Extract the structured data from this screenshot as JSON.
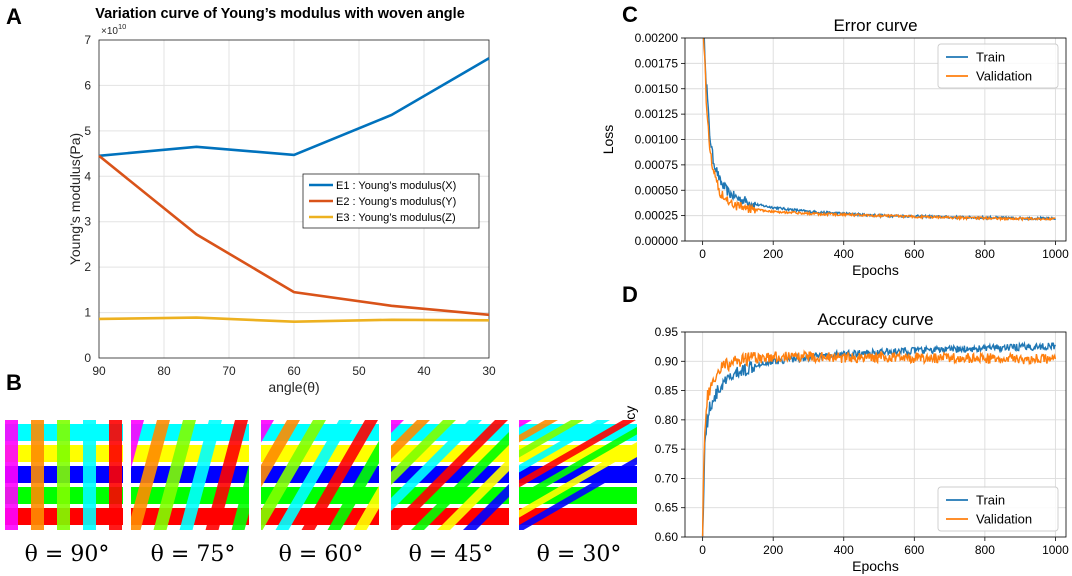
{
  "panel_letters": {
    "a": "A",
    "b": "B",
    "c": "C",
    "d": "D"
  },
  "colors": {
    "e1": "#0072BD",
    "e2": "#D95319",
    "e3": "#EDB120",
    "train": "#1f77b4",
    "validation": "#ff7f0e",
    "strand_palette": [
      "#00FFFF",
      "#FFFF00",
      "#0000FF",
      "#00FF00",
      "#FF0000",
      "#FF00FF",
      "#FF8C00",
      "#7FFF00"
    ]
  },
  "weave_labels": [
    "θ = 90°",
    "θ = 75°",
    "θ = 60°",
    "θ = 45°",
    "θ = 30°"
  ],
  "weave_angles": [
    90,
    75,
    60,
    45,
    30
  ],
  "chart_data": [
    {
      "id": "A",
      "type": "line",
      "title": "Variation curve of Young’s modulus with woven angle",
      "xlabel": "angle(θ)",
      "ylabel": "Young’s modulus(Pa)",
      "exponent_label": "×10",
      "exponent_power": "10",
      "x": [
        90,
        75,
        60,
        45,
        30
      ],
      "xlim": [
        90,
        30
      ],
      "ylim": [
        0,
        7
      ],
      "xticks": [
        "90",
        "80",
        "70",
        "60",
        "50",
        "40",
        "30"
      ],
      "yticks": [
        "0",
        "1",
        "2",
        "3",
        "4",
        "5",
        "6",
        "7"
      ],
      "grid": true,
      "legend_position": "center-right",
      "series": [
        {
          "name": "E1 : Young’s modulus(X)",
          "values": [
            4.45,
            4.65,
            4.47,
            5.35,
            6.6
          ]
        },
        {
          "name": "E2 : Young’s modulus(Y)",
          "values": [
            4.45,
            2.72,
            1.45,
            1.15,
            0.95
          ]
        },
        {
          "name": "E3 : Young’s modulus(Z)",
          "values": [
            0.86,
            0.89,
            0.8,
            0.84,
            0.83
          ]
        }
      ]
    },
    {
      "id": "C",
      "type": "line",
      "title": "Error curve",
      "xlabel": "Epochs",
      "ylabel": "Loss",
      "xlim": [
        -50,
        1030
      ],
      "ylim": [
        0,
        0.002
      ],
      "xticks": [
        "0",
        "200",
        "400",
        "600",
        "800",
        "1000"
      ],
      "yticks": [
        "0.00000",
        "0.00025",
        "0.00050",
        "0.00075",
        "0.00100",
        "0.00125",
        "0.00150",
        "0.00175",
        "0.00200"
      ],
      "grid": true,
      "legend_position": "top-right",
      "series": [
        {
          "name": "Train",
          "x": [
            0,
            5,
            10,
            20,
            30,
            50,
            75,
            100,
            150,
            200,
            300,
            400,
            500,
            600,
            700,
            800,
            900,
            1000
          ],
          "values": [
            0.0021,
            0.002,
            0.0016,
            0.00105,
            0.0008,
            0.00058,
            0.00047,
            0.00042,
            0.00036,
            0.00033,
            0.00029,
            0.00027,
            0.00025,
            0.000245,
            0.000235,
            0.00023,
            0.000225,
            0.00022
          ]
        },
        {
          "name": "Validation",
          "x": [
            0,
            5,
            10,
            20,
            30,
            50,
            75,
            100,
            150,
            200,
            300,
            400,
            500,
            600,
            700,
            800,
            900,
            1000
          ],
          "values": [
            0.0021,
            0.0019,
            0.0014,
            0.0009,
            0.0007,
            0.00048,
            0.00038,
            0.00034,
            0.00031,
            0.00029,
            0.00027,
            0.00026,
            0.00025,
            0.00024,
            0.00023,
            0.000225,
            0.00022,
            0.000215
          ]
        }
      ]
    },
    {
      "id": "D",
      "type": "line",
      "title": "Accuracy curve",
      "xlabel": "Epochs",
      "ylabel": "Accuracy",
      "xlim": [
        -50,
        1030
      ],
      "ylim": [
        0.6,
        0.95
      ],
      "xticks": [
        "0",
        "200",
        "400",
        "600",
        "800",
        "1000"
      ],
      "yticks": [
        "0.60",
        "0.65",
        "0.70",
        "0.75",
        "0.80",
        "0.85",
        "0.90",
        "0.95"
      ],
      "grid": true,
      "legend_position": "bottom-right",
      "series": [
        {
          "name": "Train",
          "x": [
            0,
            5,
            10,
            20,
            30,
            50,
            75,
            100,
            150,
            200,
            300,
            400,
            500,
            600,
            700,
            800,
            900,
            1000
          ],
          "values": [
            0.6,
            0.74,
            0.79,
            0.82,
            0.835,
            0.855,
            0.87,
            0.88,
            0.895,
            0.9,
            0.907,
            0.912,
            0.915,
            0.918,
            0.92,
            0.922,
            0.924,
            0.926
          ]
        },
        {
          "name": "Validation",
          "x": [
            0,
            5,
            10,
            20,
            30,
            50,
            75,
            100,
            150,
            200,
            300,
            400,
            500,
            600,
            700,
            800,
            900,
            1000
          ],
          "values": [
            0.6,
            0.78,
            0.82,
            0.85,
            0.865,
            0.885,
            0.895,
            0.9,
            0.905,
            0.907,
            0.908,
            0.906,
            0.907,
            0.906,
            0.905,
            0.905,
            0.904,
            0.904
          ]
        }
      ]
    }
  ]
}
